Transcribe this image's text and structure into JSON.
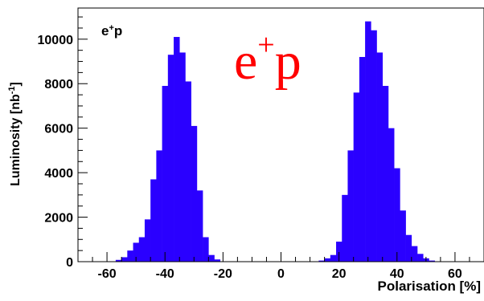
{
  "chart_data": {
    "type": "bar",
    "title": "",
    "xlabel": "Polarisation [%]",
    "ylabel_main": "Luminosity [nb",
    "ylabel_sup": "-1",
    "ylabel_close": "]",
    "xlim": [
      -70,
      70
    ],
    "ylim": [
      0,
      11400
    ],
    "xticks": [
      -60,
      -40,
      -20,
      0,
      20,
      40,
      60
    ],
    "yticks": [
      0,
      2000,
      4000,
      6000,
      8000,
      10000
    ],
    "bin_width": 2,
    "bar_color": "#2a00ff",
    "bins": [
      {
        "x": -58,
        "y": 0
      },
      {
        "x": -56,
        "y": 80
      },
      {
        "x": -54,
        "y": 200
      },
      {
        "x": -52,
        "y": 500
      },
      {
        "x": -50,
        "y": 850
      },
      {
        "x": -48,
        "y": 1100
      },
      {
        "x": -46,
        "y": 1900
      },
      {
        "x": -44,
        "y": 3700
      },
      {
        "x": -42,
        "y": 5000
      },
      {
        "x": -40,
        "y": 7900
      },
      {
        "x": -38,
        "y": 9300
      },
      {
        "x": -36,
        "y": 10100
      },
      {
        "x": -34,
        "y": 9400
      },
      {
        "x": -32,
        "y": 8100
      },
      {
        "x": -30,
        "y": 6100
      },
      {
        "x": -28,
        "y": 3200
      },
      {
        "x": -26,
        "y": 1100
      },
      {
        "x": -24,
        "y": 300
      },
      {
        "x": -22,
        "y": 100
      },
      {
        "x": -20,
        "y": 0
      },
      {
        "x": 12,
        "y": 0
      },
      {
        "x": 14,
        "y": 50
      },
      {
        "x": 16,
        "y": 150
      },
      {
        "x": 18,
        "y": 300
      },
      {
        "x": 20,
        "y": 900
      },
      {
        "x": 22,
        "y": 3000
      },
      {
        "x": 24,
        "y": 5000
      },
      {
        "x": 26,
        "y": 7600
      },
      {
        "x": 28,
        "y": 9200
      },
      {
        "x": 30,
        "y": 10800
      },
      {
        "x": 32,
        "y": 10400
      },
      {
        "x": 34,
        "y": 9400
      },
      {
        "x": 36,
        "y": 7900
      },
      {
        "x": 38,
        "y": 6000
      },
      {
        "x": 40,
        "y": 4200
      },
      {
        "x": 42,
        "y": 2300
      },
      {
        "x": 44,
        "y": 1200
      },
      {
        "x": 46,
        "y": 700
      },
      {
        "x": 48,
        "y": 350
      },
      {
        "x": 50,
        "y": 150
      },
      {
        "x": 52,
        "y": 50
      },
      {
        "x": 54,
        "y": 0
      }
    ],
    "annotations": {
      "small_label_base": "e",
      "small_label_sup": "+",
      "small_label_tail": "p",
      "big_label_base": "e",
      "big_label_sup": "+",
      "big_label_tail": "p",
      "big_label_color": "#ff0000"
    }
  }
}
